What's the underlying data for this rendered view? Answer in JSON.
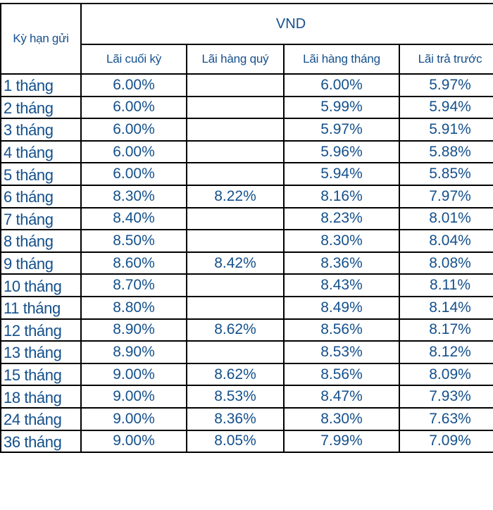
{
  "table": {
    "term_header": "Kỳ hạn gửi",
    "currency_header": "VND",
    "sub_headers": [
      "Lãi cuối kỳ",
      "Lãi hàng quý",
      "Lãi hàng tháng",
      "Lãi trả trước"
    ],
    "rows": [
      {
        "term": "1 tháng",
        "end_of_term": "6.00%",
        "quarterly": "",
        "monthly": "6.00%",
        "prepaid": "5.97%"
      },
      {
        "term": "2 tháng",
        "end_of_term": "6.00%",
        "quarterly": "",
        "monthly": "5.99%",
        "prepaid": "5.94%"
      },
      {
        "term": "3 tháng",
        "end_of_term": "6.00%",
        "quarterly": "",
        "monthly": "5.97%",
        "prepaid": "5.91%"
      },
      {
        "term": "4 tháng",
        "end_of_term": "6.00%",
        "quarterly": "",
        "monthly": "5.96%",
        "prepaid": "5.88%"
      },
      {
        "term": "5 tháng",
        "end_of_term": "6.00%",
        "quarterly": "",
        "monthly": "5.94%",
        "prepaid": "5.85%"
      },
      {
        "term": "6 tháng",
        "end_of_term": "8.30%",
        "quarterly": "8.22%",
        "monthly": "8.16%",
        "prepaid": "7.97%"
      },
      {
        "term": "7 tháng",
        "end_of_term": "8.40%",
        "quarterly": "",
        "monthly": "8.23%",
        "prepaid": "8.01%"
      },
      {
        "term": "8 tháng",
        "end_of_term": "8.50%",
        "quarterly": "",
        "monthly": "8.30%",
        "prepaid": "8.04%"
      },
      {
        "term": "9 tháng",
        "end_of_term": "8.60%",
        "quarterly": "8.42%",
        "monthly": "8.36%",
        "prepaid": "8.08%"
      },
      {
        "term": "10 tháng",
        "end_of_term": "8.70%",
        "quarterly": "",
        "monthly": "8.43%",
        "prepaid": "8.11%"
      },
      {
        "term": "11 tháng",
        "end_of_term": "8.80%",
        "quarterly": "",
        "monthly": "8.49%",
        "prepaid": "8.14%"
      },
      {
        "term": "12 tháng",
        "end_of_term": "8.90%",
        "quarterly": "8.62%",
        "monthly": "8.56%",
        "prepaid": "8.17%"
      },
      {
        "term": "13 tháng",
        "end_of_term": "8.90%",
        "quarterly": "",
        "monthly": "8.53%",
        "prepaid": "8.12%"
      },
      {
        "term": "15 tháng",
        "end_of_term": "9.00%",
        "quarterly": "8.62%",
        "monthly": "8.56%",
        "prepaid": "8.09%"
      },
      {
        "term": "18 tháng",
        "end_of_term": "9.00%",
        "quarterly": "8.53%",
        "monthly": "8.47%",
        "prepaid": "7.93%"
      },
      {
        "term": "24 tháng",
        "end_of_term": "9.00%",
        "quarterly": "8.36%",
        "monthly": "8.30%",
        "prepaid": "7.63%"
      },
      {
        "term": "36  tháng",
        "end_of_term": "9.00%",
        "quarterly": "8.05%",
        "monthly": "7.99%",
        "prepaid": "7.09%"
      }
    ]
  },
  "colors": {
    "text": "#14508c",
    "border": "#000000",
    "background": "#ffffff"
  }
}
